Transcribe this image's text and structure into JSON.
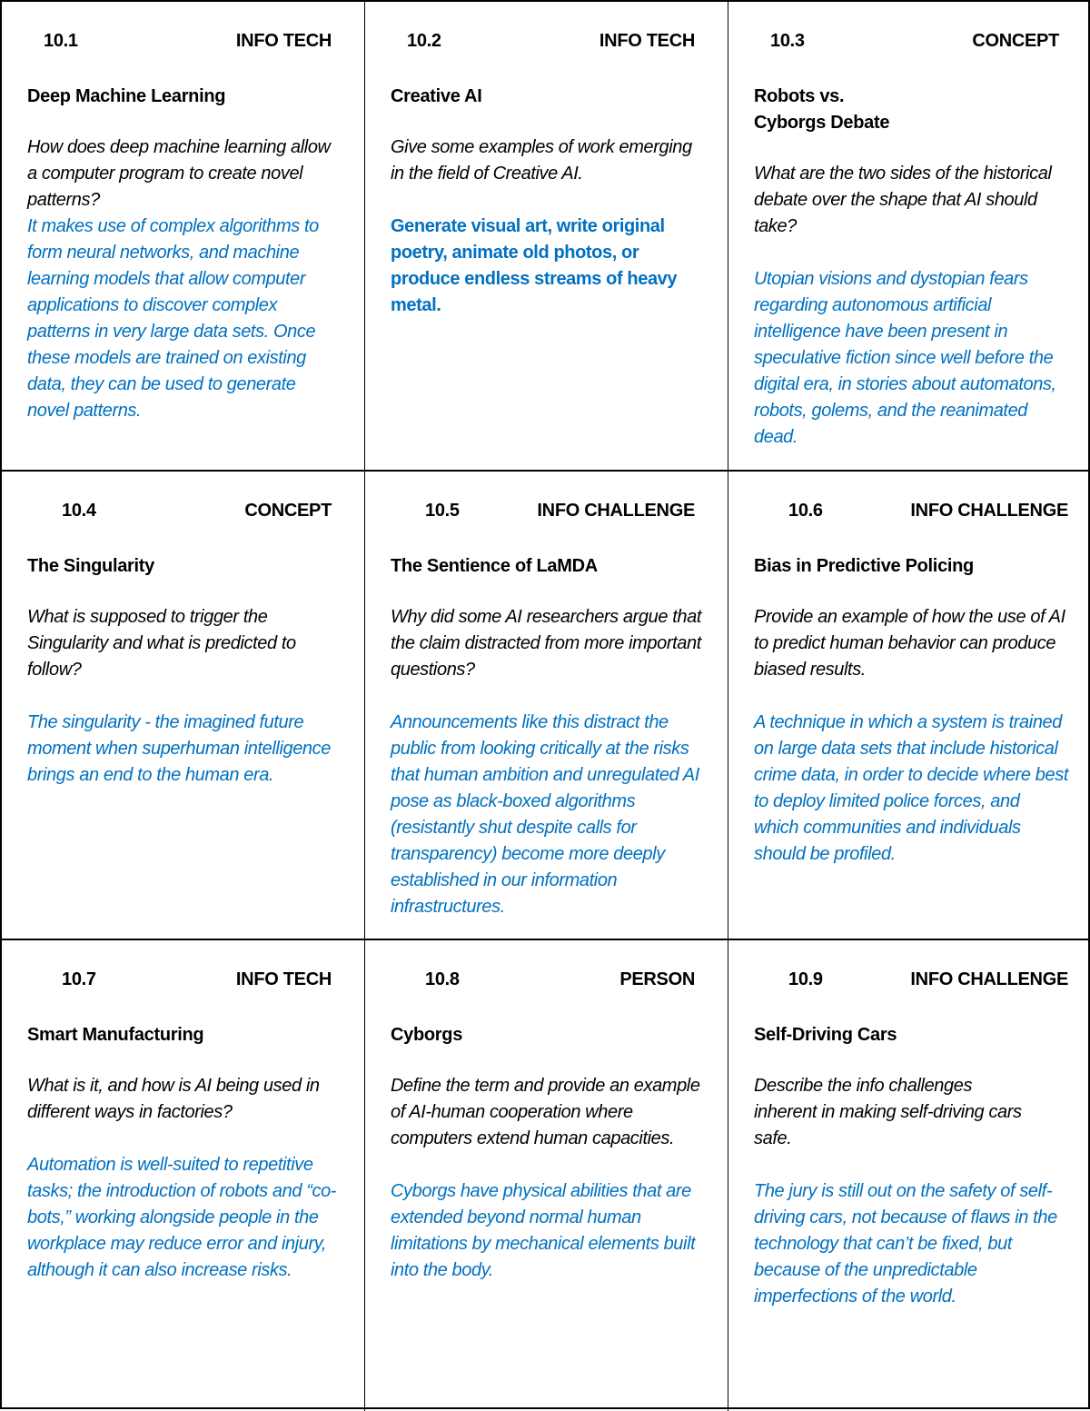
{
  "accent_color": "#0070C0",
  "cards": [
    {
      "number": "10.1",
      "category": "INFO TECH",
      "title": "Deep Machine Learning",
      "question": "How does deep machine learning allow a computer program to create novel patterns?",
      "answer": "It makes use of complex algorithms to form neural networks, and machine learning models that allow computer applications to discover complex patterns in very large data sets. Once these models are trained on existing data, they can be used to generate novel patterns."
    },
    {
      "number": "10.2",
      "category": "INFO TECH",
      "title": "Creative AI",
      "question": "Give some examples of work emerging in the field of Creative AI.",
      "answer": "Generate visual art, write original poetry, animate old photos, or produce endless streams of heavy metal."
    },
    {
      "number": "10.3",
      "category": "CONCEPT",
      "title": "Robots vs. Cyborgs Debate",
      "question": "What are the two sides of the historical debate over the shape that AI should take?",
      "answer": "Utopian visions and dystopian fears regarding autonomous artificial intelligence have been present in speculative fiction since well before the digital era, in stories about automatons, robots, golems, and the reanimated dead."
    },
    {
      "number": "10.4",
      "category": "CONCEPT",
      "title": "The Singularity",
      "question": "What is supposed to trigger the Singularity and what is predicted to follow?",
      "answer": "The singularity - the imagined future moment when superhuman intelligence brings an end to the human era."
    },
    {
      "number": "10.5",
      "category": "INFO CHALLENGE",
      "title": "The Sentience of LaMDA",
      "question": "Why did some AI researchers argue that the claim distracted from more important questions?",
      "answer": "Announcements like this distract the public from looking critically at the risks that human ambition and unregulated AI pose as black-boxed algorithms (resistantly shut despite calls for transparency) become more deeply established in our information infrastructures."
    },
    {
      "number": "10.6",
      "category": "INFO CHALLENGE",
      "title": "Bias in Predictive Policing",
      "question": "Provide an example of how the use of AI to predict human behavior can produce biased results.",
      "answer": "A technique in which a system is trained on large data sets that include historical crime data, in order to decide where best to deploy limited police forces, and which communities and individuals should be profiled."
    },
    {
      "number": "10.7",
      "category": "INFO TECH",
      "title": "Smart Manufacturing",
      "question": "What is it, and how is AI being used in different ways in factories?",
      "answer": "Automation is well-suited to repetitive tasks; the introduction of robots and “co-bots,” working alongside people in the workplace may reduce error and injury, although it can also increase risks."
    },
    {
      "number": "10.8",
      "category": "PERSON",
      "title": "Cyborgs",
      "question": "Define the term and provide an example of AI-human cooperation where computers extend human capacities.",
      "answer": "Cyborgs have physical abilities that are extended beyond normal human limitations by mechanical elements built into the body."
    },
    {
      "number": "10.9",
      "category": "INFO CHALLENGE",
      "title": "Self-Driving Cars",
      "question": "Describe the info challenges inherent in making self-driving cars safe.",
      "answer": "The jury is still out on the safety of self-driving cars, not because of flaws in the technology that can’t be fixed, but because of the unpredictable imperfections of the world."
    }
  ]
}
